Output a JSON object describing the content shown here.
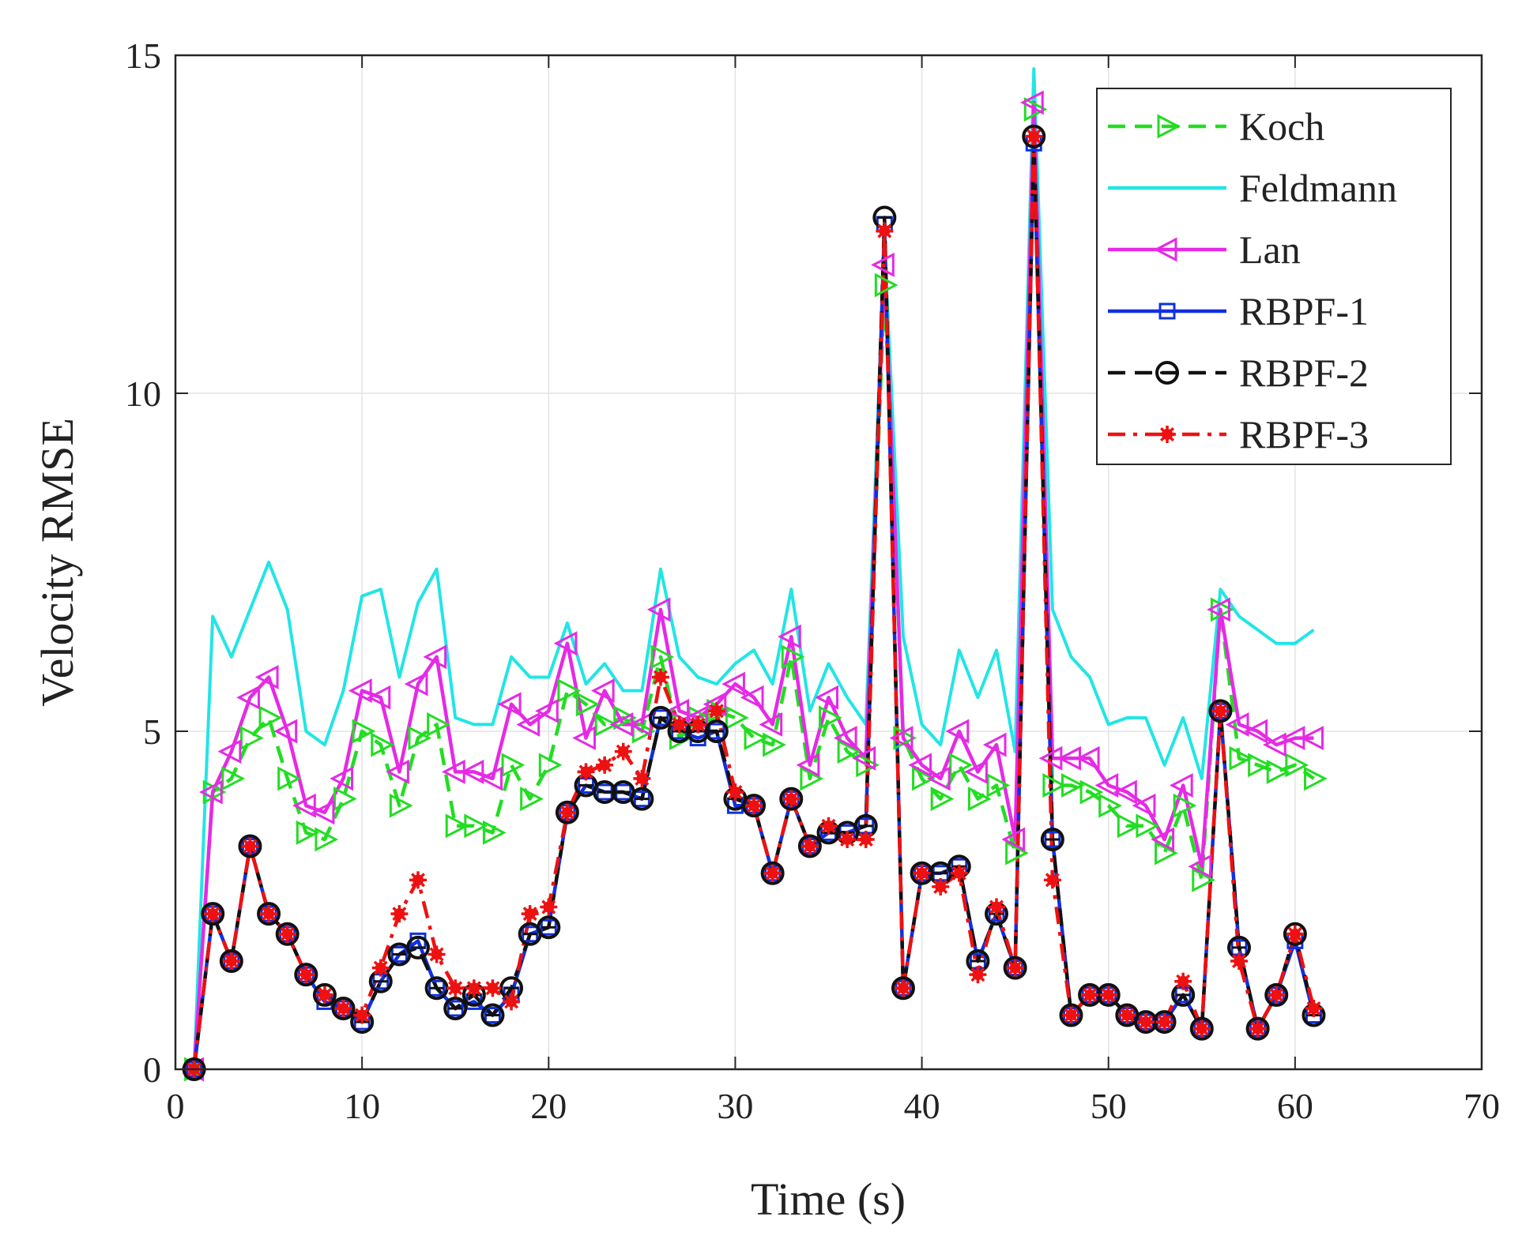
{
  "chart_data": {
    "type": "line",
    "title": "",
    "xlabel": "Time (s)",
    "ylabel": "Velocity RMSE",
    "xlim": [
      0,
      70
    ],
    "ylim": [
      0,
      15
    ],
    "xticks": [
      0,
      10,
      20,
      30,
      40,
      50,
      60,
      70
    ],
    "yticks": [
      0,
      5,
      10,
      15
    ],
    "xtick_labels": [
      "0",
      "10",
      "20",
      "30",
      "40",
      "50",
      "60",
      "70"
    ],
    "ytick_labels": [
      "0",
      "5",
      "10",
      "15"
    ],
    "grid": true,
    "legend_position": "top-right",
    "x": [
      1,
      2,
      3,
      4,
      5,
      6,
      7,
      8,
      9,
      10,
      11,
      12,
      13,
      14,
      15,
      16,
      17,
      18,
      19,
      20,
      21,
      22,
      23,
      24,
      25,
      26,
      27,
      28,
      29,
      30,
      31,
      32,
      33,
      34,
      35,
      36,
      37,
      38,
      39,
      40,
      41,
      42,
      43,
      44,
      45,
      46,
      47,
      48,
      49,
      50,
      51,
      52,
      53,
      54,
      55,
      56,
      57,
      58,
      59,
      60,
      61
    ],
    "series": [
      {
        "name": "Koch",
        "color": "#22dd22",
        "line_style": "dashed",
        "marker": "triangle-right",
        "values": [
          0.0,
          4.1,
          4.3,
          4.9,
          5.2,
          4.3,
          3.5,
          3.4,
          4.0,
          5.0,
          4.8,
          3.9,
          4.9,
          5.1,
          3.6,
          3.6,
          3.5,
          4.5,
          4.0,
          4.5,
          5.6,
          5.4,
          5.1,
          5.2,
          5.0,
          6.1,
          4.9,
          5.2,
          5.3,
          5.2,
          4.9,
          4.8,
          6.1,
          4.3,
          5.2,
          4.7,
          4.5,
          11.6,
          4.9,
          4.3,
          4.0,
          4.5,
          4.0,
          4.2,
          3.2,
          14.2,
          4.2,
          4.2,
          4.1,
          3.9,
          3.6,
          3.6,
          3.2,
          3.9,
          2.8,
          6.8,
          4.6,
          4.5,
          4.4,
          4.5,
          4.3
        ]
      },
      {
        "name": "Feldmann",
        "color": "#22e5e5",
        "line_style": "solid",
        "marker": "none",
        "values": [
          0.0,
          6.7,
          6.1,
          6.8,
          7.5,
          6.8,
          5.0,
          4.8,
          5.6,
          7.0,
          7.1,
          5.8,
          6.9,
          7.4,
          5.2,
          5.1,
          5.1,
          6.1,
          5.8,
          5.8,
          6.6,
          5.7,
          6.0,
          5.6,
          5.6,
          7.4,
          6.1,
          5.8,
          5.7,
          6.0,
          6.2,
          5.7,
          7.1,
          5.3,
          6.0,
          5.5,
          5.1,
          12.2,
          6.4,
          5.1,
          4.8,
          6.2,
          5.5,
          6.2,
          4.7,
          14.8,
          6.8,
          6.1,
          5.8,
          5.1,
          5.2,
          5.2,
          4.5,
          5.2,
          4.3,
          7.1,
          6.7,
          6.5,
          6.3,
          6.3,
          6.5
        ]
      },
      {
        "name": "Lan",
        "color": "#e52ae5",
        "line_style": "solid",
        "marker": "triangle-left",
        "values": [
          0.0,
          4.1,
          4.7,
          5.5,
          5.8,
          5.0,
          3.9,
          3.8,
          4.3,
          5.6,
          5.5,
          4.4,
          5.7,
          6.1,
          4.4,
          4.4,
          4.3,
          5.4,
          5.1,
          5.3,
          6.3,
          4.9,
          5.6,
          5.1,
          5.1,
          6.8,
          5.3,
          5.2,
          5.4,
          5.7,
          5.5,
          5.1,
          6.4,
          4.5,
          5.5,
          4.9,
          4.6,
          11.9,
          4.9,
          4.5,
          4.3,
          5.0,
          4.4,
          4.8,
          3.4,
          14.3,
          4.6,
          4.6,
          4.6,
          4.2,
          4.1,
          3.9,
          3.4,
          4.2,
          3.0,
          6.8,
          5.1,
          5.0,
          4.8,
          4.9,
          4.9
        ]
      },
      {
        "name": "RBPF-1",
        "color": "#1030e0",
        "line_style": "solid",
        "marker": "square",
        "values": [
          0.0,
          2.3,
          1.6,
          3.3,
          2.3,
          2.0,
          1.4,
          1.0,
          0.9,
          0.7,
          1.3,
          1.7,
          1.9,
          1.2,
          0.9,
          1.0,
          0.8,
          1.1,
          2.0,
          2.1,
          3.8,
          4.2,
          4.1,
          4.1,
          4.0,
          5.2,
          5.0,
          4.9,
          5.0,
          3.9,
          3.9,
          2.9,
          4.0,
          3.3,
          3.5,
          3.5,
          3.6,
          12.5,
          1.2,
          2.9,
          2.9,
          3.0,
          1.6,
          2.3,
          1.5,
          13.7,
          3.4,
          0.8,
          1.1,
          1.1,
          0.8,
          0.7,
          0.7,
          1.1,
          0.6,
          5.3,
          1.8,
          0.6,
          1.1,
          1.9,
          0.8
        ]
      },
      {
        "name": "RBPF-2",
        "color": "#111111",
        "line_style": "dashed",
        "marker": "circle",
        "values": [
          0.0,
          2.3,
          1.6,
          3.3,
          2.3,
          2.0,
          1.4,
          1.1,
          0.9,
          0.7,
          1.3,
          1.7,
          1.8,
          1.2,
          0.9,
          1.1,
          0.8,
          1.2,
          2.0,
          2.1,
          3.8,
          4.2,
          4.1,
          4.1,
          4.0,
          5.2,
          5.0,
          5.0,
          5.0,
          4.0,
          3.9,
          2.9,
          4.0,
          3.3,
          3.5,
          3.5,
          3.6,
          12.6,
          1.2,
          2.9,
          2.9,
          3.0,
          1.6,
          2.3,
          1.5,
          13.8,
          3.4,
          0.8,
          1.1,
          1.1,
          0.8,
          0.7,
          0.7,
          1.1,
          0.6,
          5.3,
          1.8,
          0.6,
          1.1,
          2.0,
          0.8
        ]
      },
      {
        "name": "RBPF-3",
        "color": "#ee1111",
        "line_style": "dashdot",
        "marker": "star",
        "values": [
          0.0,
          2.3,
          1.6,
          3.3,
          2.3,
          2.0,
          1.4,
          1.1,
          0.9,
          0.8,
          1.5,
          2.3,
          2.8,
          1.7,
          1.2,
          1.2,
          1.2,
          1.0,
          2.3,
          2.4,
          3.8,
          4.4,
          4.5,
          4.7,
          4.3,
          5.8,
          5.1,
          5.1,
          5.3,
          4.1,
          3.9,
          2.9,
          4.0,
          3.3,
          3.6,
          3.4,
          3.4,
          12.4,
          1.2,
          2.9,
          2.7,
          2.9,
          1.4,
          2.4,
          1.5,
          13.8,
          2.8,
          0.8,
          1.1,
          1.1,
          0.8,
          0.7,
          0.7,
          1.3,
          0.6,
          5.3,
          1.6,
          0.6,
          1.1,
          2.0,
          0.9
        ]
      }
    ]
  }
}
